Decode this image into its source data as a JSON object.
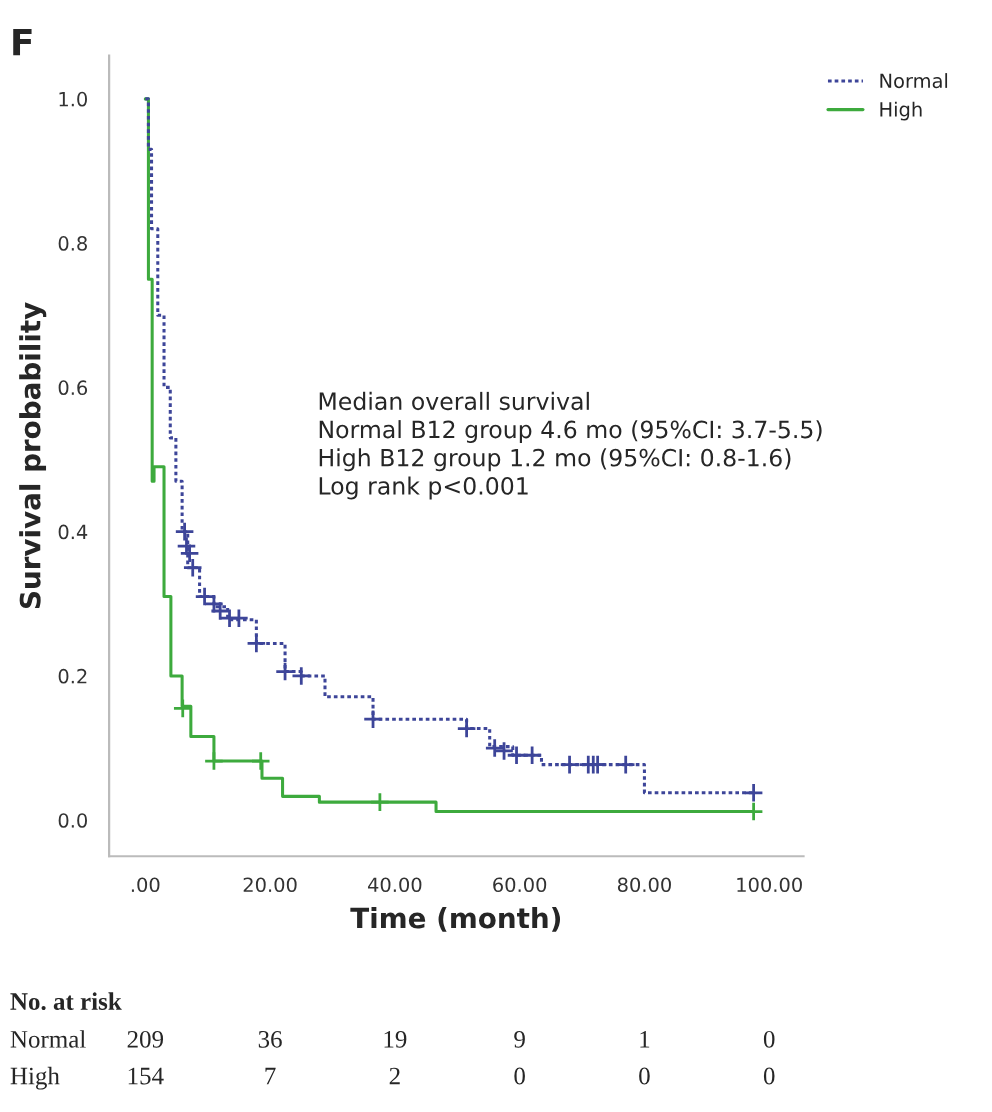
{
  "chart_data": {
    "type": "step",
    "title": "F",
    "xlabel": "Time (month)",
    "ylabel": "Survival probability",
    "xlim": [
      -5.8,
      105.5
    ],
    "ylim": [
      -0.05,
      1.06
    ],
    "xticks": [
      {
        "value": 0,
        "label": ".00"
      },
      {
        "value": 20,
        "label": "20.00"
      },
      {
        "value": 40,
        "label": "40.00"
      },
      {
        "value": 60,
        "label": "60.00"
      },
      {
        "value": 80,
        "label": "80.00"
      },
      {
        "value": 100,
        "label": "100.00"
      }
    ],
    "yticks": [
      {
        "value": 0,
        "label": "0.0"
      },
      {
        "value": 0.2,
        "label": "0.2"
      },
      {
        "value": 0.4,
        "label": "0.4"
      },
      {
        "value": 0.6,
        "label": "0.6"
      },
      {
        "value": 0.8,
        "label": "0.8"
      },
      {
        "value": 1,
        "label": "1.0"
      }
    ],
    "grid": false,
    "legend": "top right",
    "series": [
      {
        "name": "Normal",
        "color": "#3d4599",
        "line_style": "dotted",
        "x": [
          0,
          0.5,
          1,
          2,
          3,
          4,
          4.9,
          5.9,
          6.8,
          8.7,
          11,
          13.2,
          15,
          17.8,
          22.4,
          25,
          28.8,
          36.5,
          50.7,
          51.5,
          55.2,
          58.9,
          63.5,
          80,
          97.5
        ],
        "values": [
          1,
          0.93,
          0.82,
          0.7,
          0.6,
          0.53,
          0.47,
          0.4,
          0.35,
          0.31,
          0.296,
          0.278,
          0.278,
          0.245,
          0.206,
          0.2,
          0.171,
          0.14,
          0.14,
          0.127,
          0.102,
          0.09,
          0.077,
          0.038,
          0.038
        ]
      },
      {
        "name": "High",
        "color": "#3daa3d",
        "line_style": "solid",
        "x": [
          0,
          0.5,
          1.1,
          1.4,
          3,
          4.1,
          5.9,
          7.3,
          11,
          18.7,
          22,
          27.9,
          46.6,
          97.5
        ],
        "values": [
          1,
          0.75,
          0.47,
          0.49,
          0.31,
          0.2,
          0.158,
          0.116,
          0.082,
          0.058,
          0.033,
          0.025,
          0.012,
          0.012
        ]
      },
      {
        "type": "scatter",
        "color": "#3d4599",
        "marker": "cross",
        "x": [
          6.3,
          6.6,
          7.1,
          7.6,
          9.5,
          11,
          12,
          13.5,
          15,
          17.8,
          22.4,
          25,
          36.5,
          51.5,
          56,
          57.5,
          59.5,
          62,
          68,
          71,
          71.8,
          72.5,
          77,
          97.5
        ],
        "values": [
          0.4,
          0.38,
          0.37,
          0.35,
          0.31,
          0.3,
          0.29,
          0.28,
          0.28,
          0.245,
          0.206,
          0.2,
          0.14,
          0.127,
          0.1,
          0.096,
          0.09,
          0.09,
          0.077,
          0.077,
          0.077,
          0.077,
          0.077,
          0.038
        ]
      },
      {
        "type": "scatter",
        "color": "#3daa3d",
        "marker": "cross",
        "x": [
          6,
          11,
          18.5,
          37.6,
          97.5
        ],
        "values": [
          0.155,
          0.082,
          0.082,
          0.025,
          0.012
        ]
      }
    ],
    "annotations": [
      "Median overall survival\nNormal B12 group 4.6 mo (95%CI: 3.7-5.5)\nHigh B12 group 1.2 mo (95%CI: 0.8-1.6)\nLog rank p<0.001",
      "No. at risk",
      "Normal",
      "209",
      "36",
      "19",
      "9",
      "1",
      "0",
      "High",
      "154",
      "7",
      "2",
      "0",
      "0",
      "0"
    ]
  }
}
